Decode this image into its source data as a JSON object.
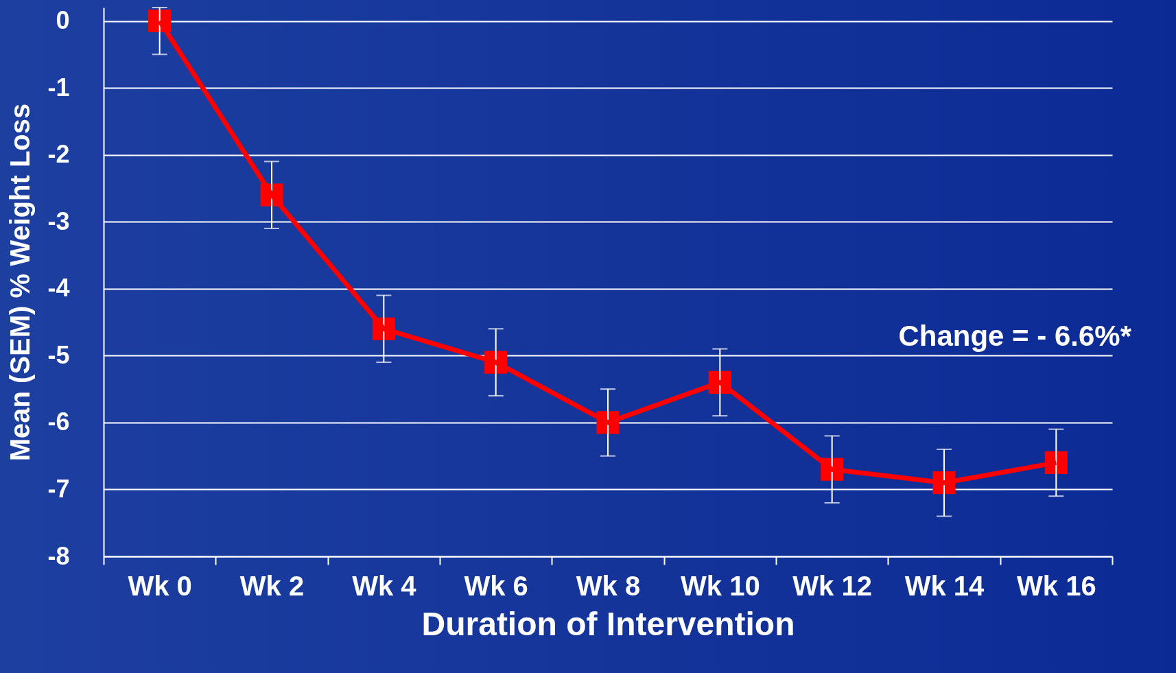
{
  "chart_data": {
    "type": "line",
    "xlabel": "Duration of Intervention",
    "ylabel": "Mean (SEM) % Weight Loss",
    "categories": [
      "Wk 0",
      "Wk 2",
      "Wk 4",
      "Wk 6",
      "Wk 8",
      "Wk 10",
      "Wk 12",
      "Wk 14",
      "Wk 16"
    ],
    "series": [
      {
        "color": "#ff0000",
        "values": [
          0,
          -2.6,
          -4.6,
          -5.1,
          -6.0,
          -5.4,
          -6.7,
          -6.9,
          -6.6
        ],
        "errors": [
          [
            -0.5,
            0.2
          ],
          [
            -3.1,
            -2.1
          ],
          [
            -5.1,
            -4.1
          ],
          [
            -5.6,
            -4.6
          ],
          [
            -6.5,
            -5.5
          ],
          [
            -5.9,
            -4.9
          ],
          [
            -7.2,
            -6.2
          ],
          [
            -7.4,
            -6.4
          ],
          [
            -7.1,
            -6.1
          ]
        ]
      }
    ],
    "ylim": [
      -8,
      0.2
    ],
    "yticks": [
      -8,
      -7,
      -6,
      -5,
      -4,
      -3,
      -2,
      -1,
      0
    ],
    "grid": "y",
    "marker": "square",
    "line_style": "solid",
    "annotations": [
      "Change = - 6.6%*"
    ]
  }
}
